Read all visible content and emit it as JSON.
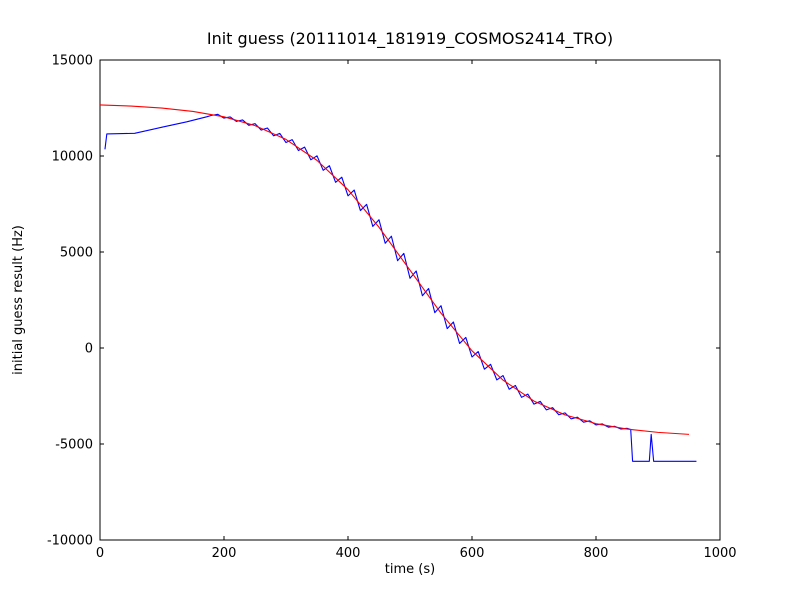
{
  "figure": {
    "background": "#ffffff",
    "frame_color": "#000000"
  },
  "chart_data": {
    "type": "line",
    "title": "Init guess (20111014_181919_COSMOS2414_TRO)",
    "xlabel": "time (s)",
    "ylabel": "initial guess result (Hz)",
    "xlim": [
      0,
      1000
    ],
    "ylim": [
      -10000,
      15000
    ],
    "grid": false,
    "legend": "none",
    "xticks": [
      0,
      200,
      400,
      600,
      800,
      1000
    ],
    "xtick_labels": [
      "0",
      "200",
      "400",
      "600",
      "800",
      "1000"
    ],
    "yticks": [
      -10000,
      -5000,
      0,
      5000,
      10000,
      15000
    ],
    "ytick_labels": [
      "-10000",
      "-5000",
      "0",
      "5000",
      "10000",
      "15000"
    ],
    "series": [
      {
        "name": "initial-guess-measured",
        "color": "#0000ff",
        "x": [
          8,
          11,
          56,
          100,
          140,
          172,
          180,
          190,
          200,
          210,
          220,
          230,
          240,
          250,
          260,
          270,
          280,
          290,
          300,
          310,
          320,
          330,
          340,
          350,
          360,
          370,
          380,
          390,
          400,
          410,
          420,
          430,
          440,
          450,
          460,
          470,
          480,
          490,
          500,
          510,
          520,
          530,
          540,
          550,
          560,
          570,
          580,
          590,
          600,
          610,
          620,
          630,
          640,
          650,
          660,
          670,
          680,
          690,
          700,
          710,
          720,
          730,
          740,
          750,
          760,
          770,
          780,
          790,
          800,
          810,
          820,
          830,
          840,
          850,
          856,
          859,
          886,
          889,
          893,
          962
        ],
        "y": [
          10350,
          11150,
          11180,
          11500,
          11780,
          12040,
          12115,
          12170,
          11974,
          12037,
          11802,
          11878,
          11598,
          11687,
          11350,
          11458,
          11050,
          11178,
          10702,
          10852,
          10287,
          10463,
          9803,
          10010,
          9253,
          9492,
          8629,
          8897,
          7924,
          8226,
          7158,
          7483,
          6332,
          6680,
          5454,
          5823,
          4548,
          4927,
          3630,
          4011,
          2722,
          3097,
          1842,
          2204,
          1010,
          1353,
          238,
          550,
          -468,
          -185,
          -1105,
          -848,
          -1661,
          -1434,
          -2147,
          -1951,
          -2569,
          -2400,
          -2926,
          -2778,
          -3224,
          -3106,
          -3478,
          -3377,
          -3690,
          -3602,
          -3862,
          -3793,
          -4006,
          -3952,
          -4123,
          -4075,
          -4220,
          -4181,
          -4245,
          -5900,
          -5900,
          -4500,
          -5900,
          -5900
        ]
      },
      {
        "name": "fit-curve",
        "color": "#ff0000",
        "x": [
          0,
          50,
          100,
          150,
          200,
          250,
          300,
          350,
          400,
          450,
          500,
          550,
          600,
          650,
          700,
          750,
          800,
          850,
          900,
          950
        ],
        "y": [
          12662,
          12599,
          12495,
          12322,
          12040,
          11582,
          10864,
          9772,
          8246,
          6288,
          4050,
          1812,
          -146,
          -1672,
          -2764,
          -3482,
          -3940,
          -4222,
          -4395,
          -4499
        ]
      }
    ]
  }
}
